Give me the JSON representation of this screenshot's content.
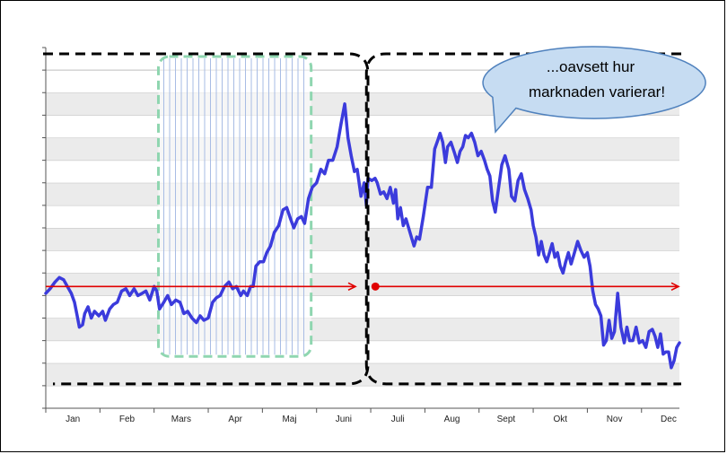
{
  "chart_data": {
    "type": "line",
    "title": "",
    "xlabel": "",
    "ylabel": "",
    "categories": [
      "Jan",
      "Feb",
      "Mars",
      "Apr",
      "Maj",
      "Juni",
      "Juli",
      "Aug",
      "Sept",
      "Okt",
      "Nov",
      "Dec"
    ],
    "x_range": [
      0,
      11.7
    ],
    "y_range": [
      0,
      16
    ],
    "grid": {
      "horizontal_bands": true,
      "vertical": false,
      "band_count": 15
    },
    "colors": {
      "line": "#3b3bdc",
      "reference": "#e00000",
      "band_gray": "#ebebeb",
      "phase_box": "#000000",
      "shaded_box": "#8fd6b0",
      "hatch": "#a8bce4",
      "bubble_fill": "#c6dcf2",
      "bubble_stroke": "#4f81bd"
    },
    "series": [
      {
        "values": [
          [
            0.0,
            5.1
          ],
          [
            0.08,
            5.3
          ],
          [
            0.17,
            5.6
          ],
          [
            0.25,
            5.8
          ],
          [
            0.33,
            5.7
          ],
          [
            0.4,
            5.4
          ],
          [
            0.47,
            5.1
          ],
          [
            0.53,
            4.7
          ],
          [
            0.58,
            4.1
          ],
          [
            0.62,
            3.6
          ],
          [
            0.68,
            3.7
          ],
          [
            0.72,
            4.2
          ],
          [
            0.78,
            4.5
          ],
          [
            0.84,
            4.0
          ],
          [
            0.9,
            4.3
          ],
          [
            0.98,
            4.1
          ],
          [
            1.05,
            4.3
          ],
          [
            1.1,
            3.9
          ],
          [
            1.18,
            4.4
          ],
          [
            1.25,
            4.6
          ],
          [
            1.32,
            4.7
          ],
          [
            1.4,
            5.2
          ],
          [
            1.48,
            5.3
          ],
          [
            1.55,
            5.0
          ],
          [
            1.63,
            5.3
          ],
          [
            1.7,
            5.0
          ],
          [
            1.78,
            5.1
          ],
          [
            1.85,
            5.2
          ],
          [
            1.92,
            4.8
          ],
          [
            2.0,
            5.4
          ],
          [
            2.05,
            5.2
          ],
          [
            2.1,
            4.4
          ],
          [
            2.18,
            4.7
          ],
          [
            2.25,
            5.0
          ],
          [
            2.32,
            4.6
          ],
          [
            2.4,
            4.8
          ],
          [
            2.48,
            4.7
          ],
          [
            2.55,
            4.2
          ],
          [
            2.62,
            4.3
          ],
          [
            2.7,
            4.0
          ],
          [
            2.78,
            3.8
          ],
          [
            2.85,
            4.1
          ],
          [
            2.92,
            3.9
          ],
          [
            3.0,
            4.0
          ],
          [
            3.08,
            4.7
          ],
          [
            3.15,
            4.9
          ],
          [
            3.22,
            5.0
          ],
          [
            3.3,
            5.4
          ],
          [
            3.38,
            5.6
          ],
          [
            3.45,
            5.3
          ],
          [
            3.52,
            5.4
          ],
          [
            3.6,
            5.0
          ],
          [
            3.65,
            5.2
          ],
          [
            3.72,
            5.0
          ],
          [
            3.78,
            5.4
          ],
          [
            3.83,
            5.4
          ],
          [
            3.88,
            6.3
          ],
          [
            3.95,
            6.5
          ],
          [
            4.02,
            6.5
          ],
          [
            4.08,
            6.9
          ],
          [
            4.15,
            7.2
          ],
          [
            4.22,
            7.8
          ],
          [
            4.3,
            8.1
          ],
          [
            4.38,
            8.8
          ],
          [
            4.45,
            8.9
          ],
          [
            4.52,
            8.4
          ],
          [
            4.58,
            8.0
          ],
          [
            4.65,
            8.4
          ],
          [
            4.72,
            8.5
          ],
          [
            4.78,
            8.2
          ],
          [
            4.85,
            9.3
          ],
          [
            4.92,
            9.8
          ],
          [
            5.0,
            10.0
          ],
          [
            5.08,
            10.6
          ],
          [
            5.15,
            10.4
          ],
          [
            5.22,
            11.0
          ],
          [
            5.3,
            11.0
          ],
          [
            5.38,
            11.6
          ],
          [
            5.45,
            12.6
          ],
          [
            5.52,
            13.5
          ],
          [
            5.58,
            12.0
          ],
          [
            5.64,
            11.2
          ],
          [
            5.7,
            10.5
          ],
          [
            5.75,
            10.6
          ],
          [
            5.82,
            9.4
          ],
          [
            5.88,
            10.0
          ],
          [
            5.92,
            9.0
          ],
          [
            5.95,
            10.2
          ],
          [
            6.02,
            10.1
          ],
          [
            6.08,
            10.2
          ],
          [
            6.12,
            10.0
          ],
          [
            6.18,
            9.5
          ],
          [
            6.24,
            9.6
          ],
          [
            6.3,
            9.3
          ],
          [
            6.36,
            9.8
          ],
          [
            6.42,
            9.1
          ],
          [
            6.46,
            9.7
          ],
          [
            6.5,
            8.4
          ],
          [
            6.55,
            8.9
          ],
          [
            6.6,
            8.1
          ],
          [
            6.65,
            8.4
          ],
          [
            6.7,
            8.0
          ],
          [
            6.75,
            7.6
          ],
          [
            6.8,
            7.2
          ],
          [
            6.85,
            7.6
          ],
          [
            6.9,
            7.5
          ],
          [
            6.97,
            8.5
          ],
          [
            7.05,
            9.8
          ],
          [
            7.12,
            9.8
          ],
          [
            7.18,
            11.5
          ],
          [
            7.24,
            11.9
          ],
          [
            7.28,
            12.2
          ],
          [
            7.33,
            11.8
          ],
          [
            7.38,
            10.9
          ],
          [
            7.42,
            11.6
          ],
          [
            7.48,
            11.8
          ],
          [
            7.55,
            11.3
          ],
          [
            7.6,
            10.9
          ],
          [
            7.65,
            11.4
          ],
          [
            7.7,
            11.6
          ],
          [
            7.75,
            12.1
          ],
          [
            7.8,
            12.0
          ],
          [
            7.86,
            12.2
          ],
          [
            7.92,
            11.8
          ],
          [
            7.98,
            11.2
          ],
          [
            8.04,
            11.4
          ],
          [
            8.1,
            11.0
          ],
          [
            8.15,
            10.6
          ],
          [
            8.2,
            10.3
          ],
          [
            8.25,
            9.2
          ],
          [
            8.3,
            8.7
          ],
          [
            8.35,
            9.6
          ],
          [
            8.42,
            10.8
          ],
          [
            8.48,
            11.2
          ],
          [
            8.55,
            10.6
          ],
          [
            8.6,
            9.4
          ],
          [
            8.66,
            9.2
          ],
          [
            8.72,
            10.1
          ],
          [
            8.78,
            10.4
          ],
          [
            8.84,
            9.7
          ],
          [
            8.9,
            9.3
          ],
          [
            8.96,
            8.8
          ],
          [
            9.0,
            8.1
          ],
          [
            9.05,
            7.6
          ],
          [
            9.1,
            6.8
          ],
          [
            9.15,
            7.4
          ],
          [
            9.2,
            6.8
          ],
          [
            9.25,
            6.5
          ],
          [
            9.3,
            6.9
          ],
          [
            9.35,
            7.3
          ],
          [
            9.4,
            6.7
          ],
          [
            9.45,
            6.9
          ],
          [
            9.5,
            6.3
          ],
          [
            9.55,
            6.0
          ],
          [
            9.6,
            6.5
          ],
          [
            9.65,
            6.9
          ],
          [
            9.7,
            6.4
          ],
          [
            9.75,
            6.8
          ],
          [
            9.82,
            7.4
          ],
          [
            9.88,
            7.0
          ],
          [
            9.94,
            6.7
          ],
          [
            10.0,
            6.9
          ],
          [
            10.05,
            6.3
          ],
          [
            10.1,
            5.2
          ],
          [
            10.15,
            4.6
          ],
          [
            10.2,
            4.4
          ],
          [
            10.25,
            4.1
          ],
          [
            10.3,
            2.8
          ],
          [
            10.35,
            3.0
          ],
          [
            10.4,
            3.9
          ],
          [
            10.45,
            3.1
          ],
          [
            10.5,
            3.4
          ],
          [
            10.56,
            5.1
          ],
          [
            10.62,
            3.6
          ],
          [
            10.68,
            2.9
          ],
          [
            10.73,
            3.6
          ],
          [
            10.78,
            3.0
          ],
          [
            10.84,
            3.0
          ],
          [
            10.9,
            3.6
          ],
          [
            10.96,
            2.9
          ],
          [
            11.02,
            3.0
          ],
          [
            11.08,
            2.7
          ],
          [
            11.14,
            3.4
          ],
          [
            11.2,
            3.5
          ],
          [
            11.25,
            3.2
          ],
          [
            11.3,
            2.7
          ],
          [
            11.35,
            3.3
          ],
          [
            11.4,
            2.4
          ],
          [
            11.45,
            2.5
          ],
          [
            11.5,
            2.5
          ],
          [
            11.55,
            1.8
          ],
          [
            11.6,
            2.1
          ],
          [
            11.65,
            2.7
          ],
          [
            11.7,
            2.9
          ]
        ]
      }
    ],
    "reference_line": {
      "y": 5.4
    },
    "phases": [
      {
        "x_range": [
          0.0,
          5.85
        ],
        "y_range": [
          1.0,
          16.0
        ]
      },
      {
        "x_range": [
          6.02,
          11.7
        ],
        "y_range": [
          1.0,
          16.0
        ]
      }
    ],
    "shaded_region": {
      "x_range": [
        2.08,
        4.9
      ],
      "y_range": [
        2.3,
        15.6
      ]
    },
    "callout": {
      "text_line1": "...oavsett hur",
      "text_line2": "marknaden varierar!"
    }
  }
}
